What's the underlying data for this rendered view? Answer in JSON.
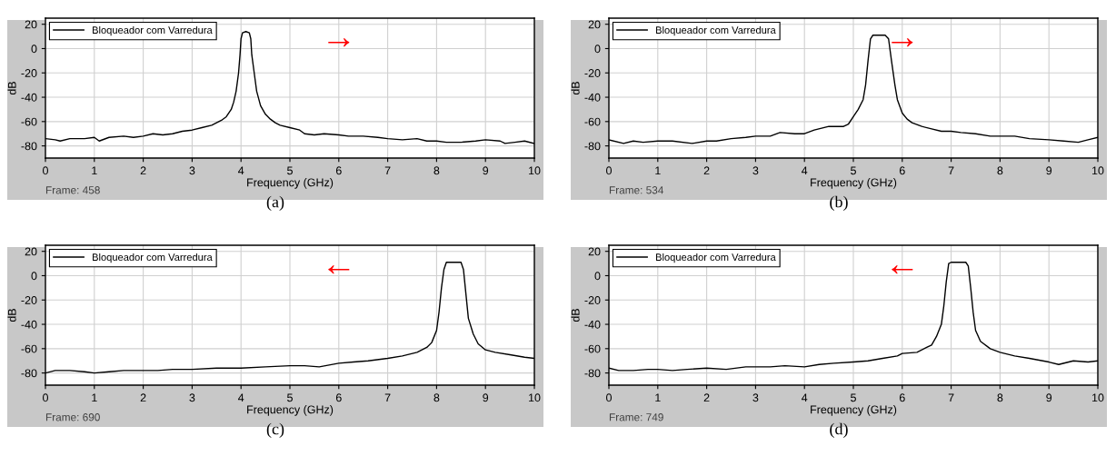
{
  "chart_data": [
    {
      "type": "line",
      "xlabel": "Frequency (GHz)",
      "ylabel": "dB",
      "xlim": [
        0,
        10
      ],
      "ylim": [
        -90,
        25
      ],
      "xticks": [
        0,
        1,
        2,
        3,
        4,
        5,
        6,
        7,
        8,
        9,
        10
      ],
      "yticks": [
        -80,
        -60,
        -40,
        -20,
        0,
        20
      ],
      "grid": true,
      "legend": "top left",
      "marker": "none",
      "line_style": "solid",
      "annotations": [
        "Frame: 458",
        "(a)",
        "→"
      ],
      "series": [
        {
          "name": "Bloqueador com Varredura",
          "color": "#000000",
          "x": [
            0,
            0.2,
            0.3,
            0.5,
            0.8,
            1.0,
            1.1,
            1.3,
            1.6,
            1.8,
            2.0,
            2.2,
            2.4,
            2.6,
            2.8,
            3.0,
            3.2,
            3.4,
            3.5,
            3.6,
            3.7,
            3.8,
            3.85,
            3.9,
            3.95,
            3.98,
            4.0,
            4.03,
            4.1,
            4.17,
            4.2,
            4.22,
            4.27,
            4.32,
            4.4,
            4.5,
            4.6,
            4.7,
            4.8,
            5.0,
            5.2,
            5.3,
            5.5,
            5.7,
            6.0,
            6.2,
            6.5,
            6.8,
            7.0,
            7.3,
            7.6,
            7.8,
            8.0,
            8.2,
            8.5,
            8.8,
            9.0,
            9.3,
            9.4,
            9.6,
            9.8,
            10
          ],
          "values": [
            -74,
            -75,
            -76,
            -74,
            -74,
            -73,
            -76,
            -73,
            -72,
            -73,
            -72,
            -70,
            -71,
            -70,
            -68,
            -67,
            -65,
            -63,
            -61,
            -59,
            -56,
            -50,
            -44,
            -35,
            -20,
            -5,
            8,
            13,
            14,
            13,
            8,
            -5,
            -20,
            -35,
            -47,
            -54,
            -58,
            -61,
            -63,
            -65,
            -67,
            -70,
            -71,
            -70,
            -71,
            -72,
            -72,
            -73,
            -74,
            -75,
            -74,
            -76,
            -76,
            -77,
            -77,
            -76,
            -75,
            -76,
            -78,
            -77,
            -76,
            -78
          ]
        }
      ]
    },
    {
      "type": "line",
      "xlabel": "Frequency (GHz)",
      "ylabel": "dB",
      "xlim": [
        0,
        10
      ],
      "ylim": [
        -90,
        25
      ],
      "xticks": [
        0,
        1,
        2,
        3,
        4,
        5,
        6,
        7,
        8,
        9,
        10
      ],
      "yticks": [
        -80,
        -60,
        -40,
        -20,
        0,
        20
      ],
      "grid": true,
      "legend": "top left",
      "marker": "none",
      "line_style": "solid",
      "annotations": [
        "Frame: 534",
        "(b)",
        "→"
      ],
      "series": [
        {
          "name": "Bloqueador com Varredura",
          "color": "#000000",
          "x": [
            0,
            0.3,
            0.5,
            0.7,
            1.0,
            1.3,
            1.7,
            2.0,
            2.2,
            2.5,
            2.8,
            3.0,
            3.3,
            3.5,
            3.8,
            4.0,
            4.2,
            4.5,
            4.8,
            4.9,
            5.0,
            5.1,
            5.2,
            5.25,
            5.3,
            5.35,
            5.4,
            5.65,
            5.72,
            5.78,
            5.85,
            5.9,
            6.0,
            6.1,
            6.2,
            6.4,
            6.6,
            6.8,
            7.0,
            7.2,
            7.5,
            7.8,
            8.0,
            8.3,
            8.6,
            9.0,
            9.3,
            9.6,
            9.8,
            10
          ],
          "values": [
            -75,
            -78,
            -76,
            -77,
            -76,
            -76,
            -78,
            -76,
            -76,
            -74,
            -73,
            -72,
            -72,
            -69,
            -70,
            -70,
            -67,
            -64,
            -64,
            -62,
            -56,
            -50,
            -42,
            -30,
            -10,
            8,
            11,
            11,
            8,
            -10,
            -30,
            -42,
            -53,
            -58,
            -61,
            -64,
            -66,
            -68,
            -68,
            -69,
            -70,
            -72,
            -72,
            -72,
            -74,
            -75,
            -76,
            -77,
            -75,
            -73
          ]
        }
      ]
    },
    {
      "type": "line",
      "xlabel": "Frequency (GHz)",
      "ylabel": "dB",
      "xlim": [
        0,
        10
      ],
      "ylim": [
        -90,
        25
      ],
      "xticks": [
        0,
        1,
        2,
        3,
        4,
        5,
        6,
        7,
        8,
        9,
        10
      ],
      "yticks": [
        -80,
        -60,
        -40,
        -20,
        0,
        20
      ],
      "grid": true,
      "legend": "top left",
      "marker": "none",
      "line_style": "solid",
      "annotations": [
        "Frame: 690",
        "(c)",
        "←"
      ],
      "series": [
        {
          "name": "Bloqueador com Varredura",
          "color": "#000000",
          "x": [
            0,
            0.2,
            0.5,
            0.8,
            1.0,
            1.3,
            1.6,
            2.0,
            2.3,
            2.6,
            3.0,
            3.5,
            4.0,
            4.5,
            5.0,
            5.3,
            5.6,
            6.0,
            6.3,
            6.6,
            7.0,
            7.3,
            7.6,
            7.8,
            7.9,
            8.0,
            8.05,
            8.1,
            8.15,
            8.2,
            8.5,
            8.55,
            8.6,
            8.65,
            8.75,
            8.85,
            9.0,
            9.2,
            9.5,
            9.8,
            10
          ],
          "values": [
            -80,
            -78,
            -78,
            -79,
            -80,
            -79,
            -78,
            -78,
            -78,
            -77,
            -77,
            -76,
            -76,
            -75,
            -74,
            -74,
            -75,
            -72,
            -71,
            -70,
            -68,
            -66,
            -63,
            -59,
            -55,
            -45,
            -30,
            -10,
            5,
            11,
            11,
            5,
            -15,
            -35,
            -48,
            -56,
            -61,
            -63,
            -65,
            -67,
            -68
          ]
        }
      ]
    },
    {
      "type": "line",
      "xlabel": "Frequency (GHz)",
      "ylabel": "dB",
      "xlim": [
        0,
        10
      ],
      "ylim": [
        -90,
        25
      ],
      "xticks": [
        0,
        1,
        2,
        3,
        4,
        5,
        6,
        7,
        8,
        9,
        10
      ],
      "yticks": [
        -80,
        -60,
        -40,
        -20,
        0,
        20
      ],
      "grid": true,
      "legend": "top left",
      "marker": "none",
      "line_style": "solid",
      "annotations": [
        "Frame: 749",
        "(d)",
        "←"
      ],
      "series": [
        {
          "name": "Bloqueador com Varredura",
          "color": "#000000",
          "x": [
            0,
            0.2,
            0.5,
            0.8,
            1.0,
            1.3,
            1.6,
            2.0,
            2.4,
            2.8,
            3.0,
            3.3,
            3.6,
            4.0,
            4.3,
            4.6,
            5.0,
            5.3,
            5.6,
            5.9,
            6.0,
            6.3,
            6.5,
            6.6,
            6.7,
            6.8,
            6.85,
            6.9,
            6.95,
            7.0,
            7.3,
            7.35,
            7.4,
            7.45,
            7.5,
            7.6,
            7.8,
            8.0,
            8.3,
            8.6,
            9.0,
            9.2,
            9.5,
            9.8,
            10
          ],
          "values": [
            -76,
            -78,
            -78,
            -77,
            -77,
            -78,
            -77,
            -76,
            -77,
            -75,
            -75,
            -75,
            -74,
            -75,
            -73,
            -72,
            -71,
            -70,
            -68,
            -66,
            -64,
            -63,
            -59,
            -57,
            -50,
            -40,
            -25,
            -5,
            10,
            11,
            11,
            8,
            -10,
            -30,
            -45,
            -54,
            -60,
            -63,
            -66,
            -68,
            -71,
            -73,
            -70,
            -71,
            -70
          ]
        }
      ]
    }
  ]
}
